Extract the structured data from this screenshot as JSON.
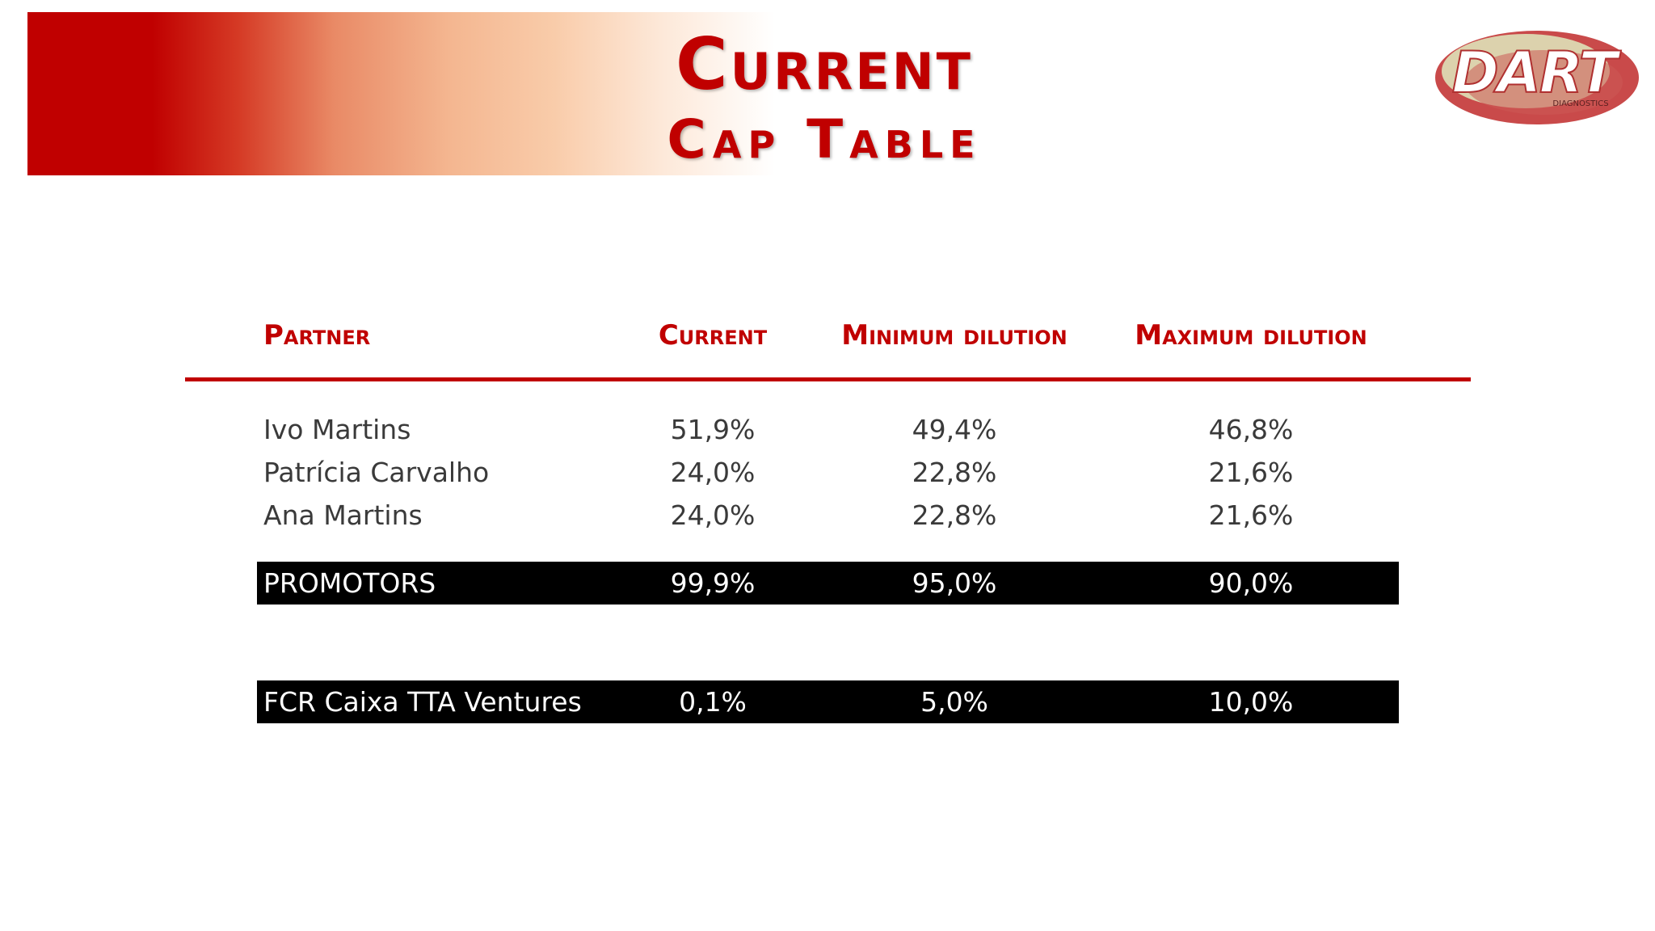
{
  "slide": {
    "title_line1": "Current",
    "title_line2": "Cap Table",
    "colors": {
      "accent": "#c00000",
      "text": "#3a3a3a",
      "highlight_row_bg": "#000000",
      "highlight_row_text": "#ffffff"
    }
  },
  "logo": {
    "wordmark": "DART",
    "subtitle": "DIAGNOSTICS"
  },
  "table": {
    "headers": {
      "partner": "Partner",
      "current": "Current",
      "minimum": "Minimum dilution",
      "maximum": "Maximum dilution"
    },
    "rows": [
      {
        "partner": "Ivo Martins",
        "current": "51,9%",
        "minimum": "49,4%",
        "maximum": "46,8%"
      },
      {
        "partner": "Patrícia Carvalho",
        "current": "24,0%",
        "minimum": "22,8%",
        "maximum": "21,6%"
      },
      {
        "partner": "Ana Martins",
        "current": "24,0%",
        "minimum": "22,8%",
        "maximum": "21,6%"
      }
    ],
    "promotors": {
      "partner": "PROMOTORS",
      "current": "99,9%",
      "minimum": "95,0%",
      "maximum": "90,0%"
    },
    "investor": {
      "partner": "FCR Caixa TTA Ventures",
      "current": "0,1%",
      "minimum": "5,0%",
      "maximum": "10,0%"
    }
  }
}
